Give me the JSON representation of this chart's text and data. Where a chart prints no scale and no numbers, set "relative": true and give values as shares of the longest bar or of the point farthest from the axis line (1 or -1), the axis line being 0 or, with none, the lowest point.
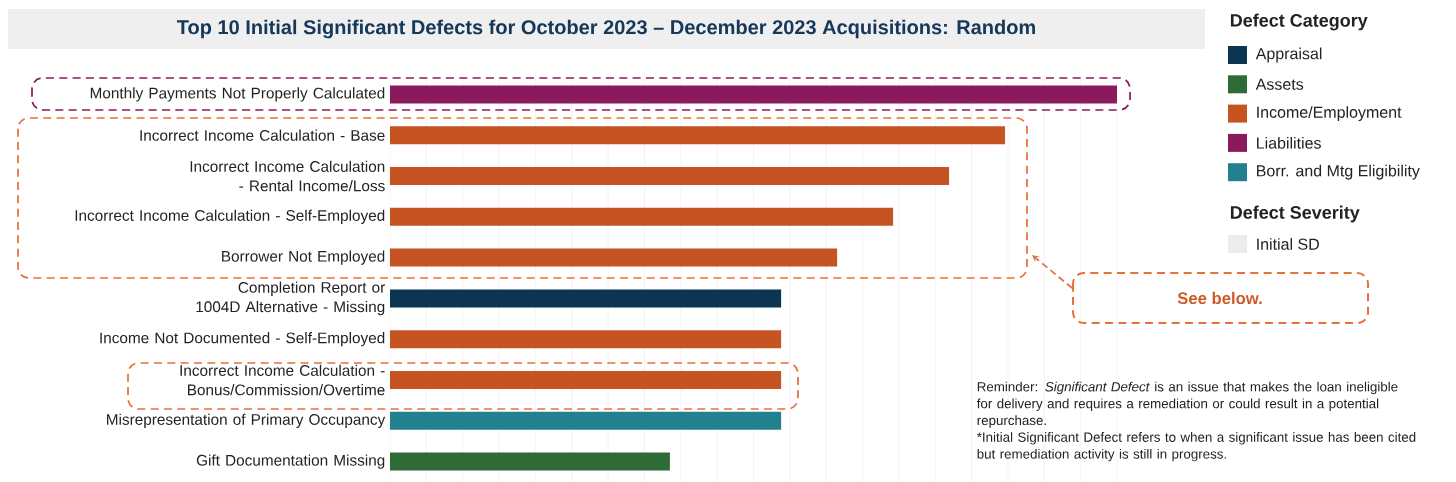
{
  "chart_data": {
    "type": "bar",
    "orientation": "horizontal",
    "relative": true,
    "grid": "x",
    "legend": "right",
    "title": "Top 10 Initial Significant Defects for October 2023 – December 2023 Acquisitions: Random",
    "legend_title": "Defect Category",
    "categories": [
      "Monthly Payments Not Properly Calculated",
      "Incorrect Income Calculation - Base",
      "Incorrect Income Calculation - Rental Income/Loss",
      "Incorrect Income Calculation - Self-Employed",
      "Borrower Not Employed",
      "Completion Report or 1004D Alternative - Missing",
      "Income Not Documented - Self-Employed",
      "Incorrect Income Calculation - Bonus/Commission/Overtime",
      "Misrepresentation of Primary Occupancy",
      "Gift Documentation Missing"
    ],
    "series": [
      {
        "name": "Appraisal",
        "color": "#0b3551",
        "values": [
          null,
          null,
          null,
          null,
          null,
          0.538,
          null,
          null,
          null,
          null
        ]
      },
      {
        "name": "Assets",
        "color": "#2e6b37",
        "values": [
          null,
          null,
          null,
          null,
          null,
          null,
          null,
          null,
          null,
          0.385
        ]
      },
      {
        "name": "Income/Employment",
        "color": "#c55422",
        "values": [
          null,
          0.846,
          0.769,
          0.692,
          0.615,
          null,
          0.538,
          0.538,
          null,
          null
        ]
      },
      {
        "name": "Liabilities",
        "color": "#8b1a5c",
        "values": [
          1,
          null,
          null,
          null,
          null,
          null,
          null,
          null,
          null,
          null
        ]
      },
      {
        "name": "Borr. and Mtg Eligibility",
        "color": "#23808f",
        "values": [
          null,
          null,
          null,
          null,
          null,
          null,
          null,
          null,
          0.538,
          null
        ]
      }
    ],
    "annotations": [
      "Defect Severity",
      "Initial SD",
      "See below.",
      "Reminder: *Significant Defect* is an issue that makes the loan ineligible for delivery and requires a remediation or could result in a potential repurchase.",
      "*Initial Significant Defect refers to when a significant issue has been cited but remediation activity is still in progress."
    ]
  }
}
